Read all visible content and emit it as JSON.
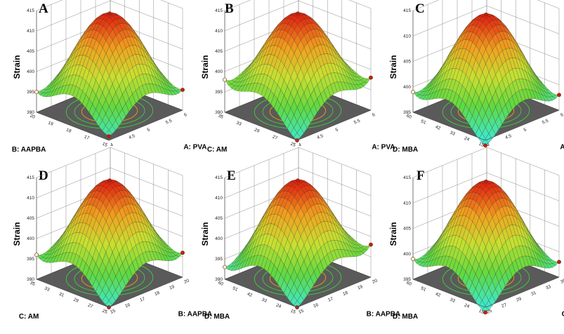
{
  "chart_data": [
    {
      "type": "surface3d",
      "panel": "A",
      "zlabel": "Strain",
      "xlabel": "A:  PVA",
      "ylabel": "B:  AAPBA",
      "x_ticks": [
        "4",
        "4.5",
        "5",
        "5.5",
        "6"
      ],
      "y_ticks": [
        "15",
        "17",
        "18",
        "19",
        "20"
      ],
      "z_ticks": [
        "390",
        "395",
        "400",
        "405",
        "410",
        "415"
      ],
      "zlim": [
        390,
        415
      ],
      "peak_z": 414,
      "front_corner_z": 391,
      "left_corner_z": 395,
      "right_corner_z": 395
    },
    {
      "type": "surface3d",
      "panel": "B",
      "zlabel": "Strain",
      "xlabel": "A:  PVA",
      "ylabel": "C:  AM",
      "x_ticks": [
        "4",
        "4.5",
        "5",
        "5.5",
        "6"
      ],
      "y_ticks": [
        "25",
        "27",
        "29",
        "33",
        "35"
      ],
      "z_ticks": [
        "390",
        "395",
        "400",
        "405",
        "410",
        "415"
      ],
      "zlim": [
        390,
        415
      ],
      "peak_z": 414,
      "front_corner_z": 390,
      "left_corner_z": 398,
      "right_corner_z": 398
    },
    {
      "type": "surface3d",
      "panel": "C",
      "zlabel": "Strain",
      "xlabel": "A:  PVA",
      "ylabel": "D:  MBA",
      "x_ticks": [
        "4",
        "4.5",
        "5",
        "5.5",
        "6"
      ],
      "y_ticks": [
        "15",
        "24",
        "33",
        "42",
        "51",
        "60"
      ],
      "z_ticks": [
        "395",
        "400",
        "405",
        "410",
        "415"
      ],
      "zlim": [
        395,
        415
      ],
      "peak_z": 414,
      "front_corner_z": 394,
      "left_corner_z": 399,
      "right_corner_z": 398
    },
    {
      "type": "surface3d",
      "panel": "D",
      "zlabel": "Strain",
      "xlabel": "B:  AAPBA",
      "ylabel": "C:  AM",
      "x_ticks": [
        "15",
        "16",
        "17",
        "18",
        "19",
        "20"
      ],
      "y_ticks": [
        "25",
        "27",
        "29",
        "31",
        "33",
        "35"
      ],
      "z_ticks": [
        "390",
        "395",
        "400",
        "405",
        "410",
        "415"
      ],
      "zlim": [
        390,
        415
      ],
      "peak_z": 414,
      "front_corner_z": 390,
      "left_corner_z": 396,
      "right_corner_z": 396
    },
    {
      "type": "surface3d",
      "panel": "E",
      "zlabel": "Strain",
      "xlabel": "B:  AAPBA",
      "ylabel": "D:  MBA",
      "x_ticks": [
        "15",
        "16",
        "17",
        "18",
        "19",
        "20"
      ],
      "y_ticks": [
        "15",
        "24",
        "33",
        "42",
        "51",
        "60"
      ],
      "z_ticks": [
        "390",
        "395",
        "400",
        "405",
        "410",
        "415"
      ],
      "zlim": [
        390,
        415
      ],
      "peak_z": 414,
      "front_corner_z": 390,
      "left_corner_z": 393,
      "right_corner_z": 398
    },
    {
      "type": "surface3d",
      "panel": "F",
      "zlabel": "Strain",
      "xlabel": "C:  AM",
      "ylabel": "D:  MBA",
      "x_ticks": [
        "25",
        "27",
        "29",
        "31",
        "33",
        "35"
      ],
      "y_ticks": [
        "15",
        "24",
        "33",
        "42",
        "51",
        "60"
      ],
      "z_ticks": [
        "395",
        "400",
        "405",
        "410",
        "415"
      ],
      "zlim": [
        395,
        415
      ],
      "peak_z": 414,
      "front_corner_z": 394,
      "left_corner_z": 399,
      "right_corner_z": 398
    }
  ],
  "colors": {
    "low": "#40e8c8",
    "mid_low": "#60d840",
    "mid": "#c8e030",
    "mid_high": "#f0a020",
    "high": "#e02010",
    "floor": "#5a5a5a",
    "contour_outer": "#3cd23c",
    "contour_inner": "#f0a000",
    "marker_high": "#c0200c",
    "marker_low": "#fff2d8"
  }
}
